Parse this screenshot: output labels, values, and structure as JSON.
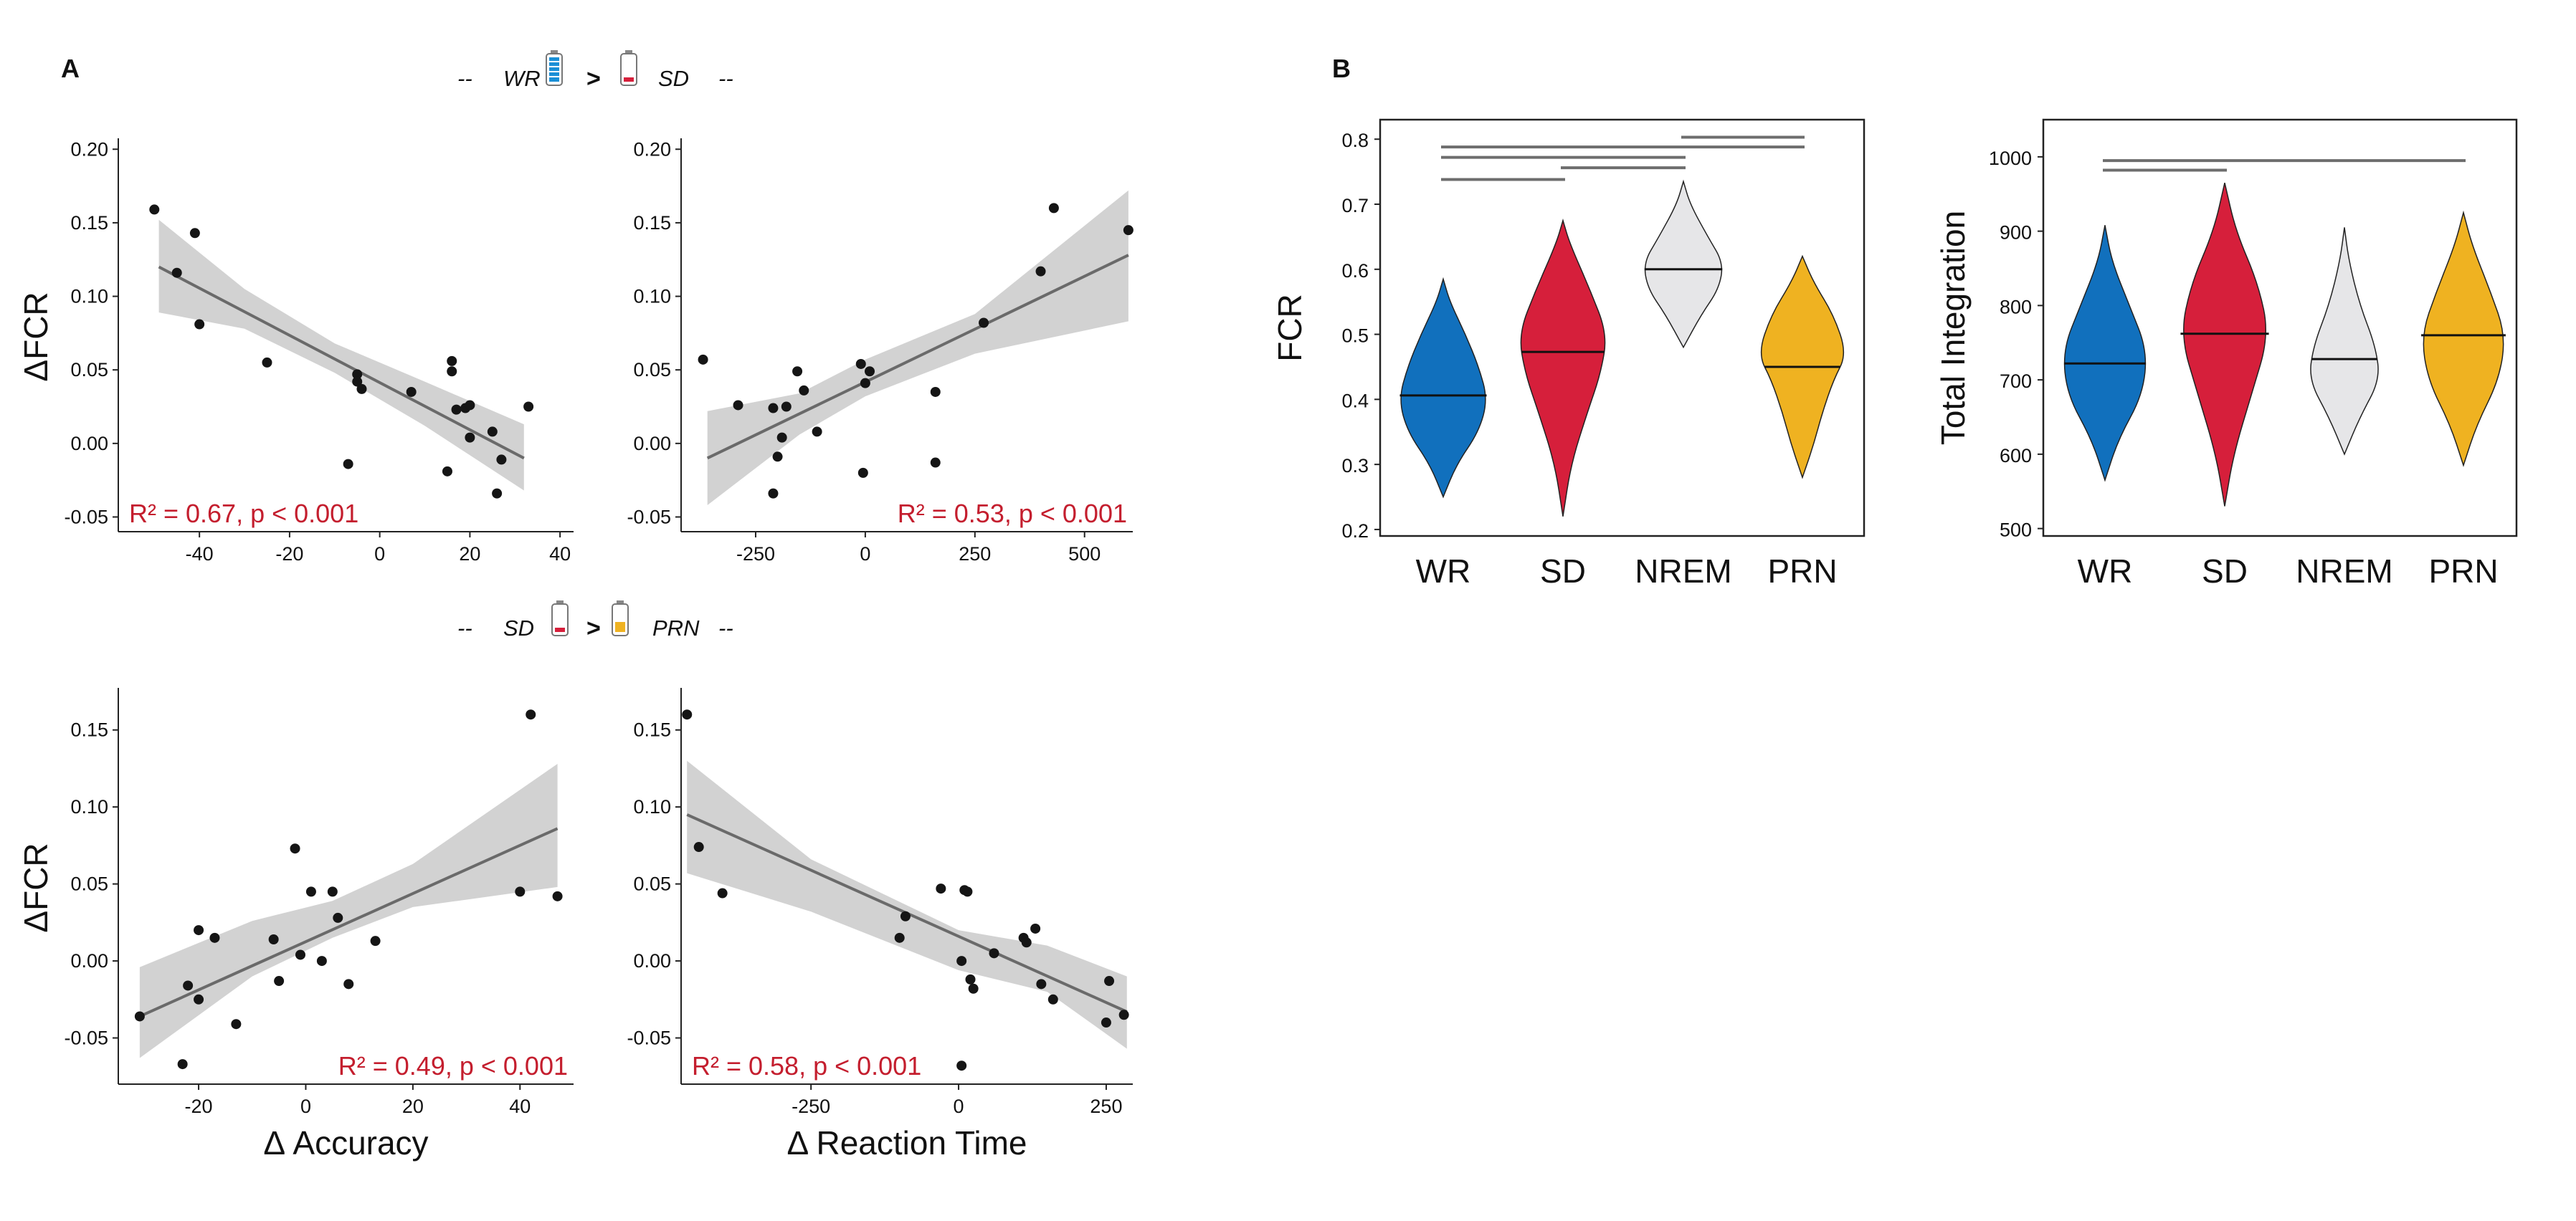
{
  "panels": {
    "a": "A",
    "b": "B"
  },
  "comparisons": [
    {
      "dash": "--",
      "left": "WR",
      "op": ">",
      "right": "SD"
    },
    {
      "dash": "--",
      "left": "SD",
      "op": ">",
      "right": "PRN"
    }
  ],
  "colors": {
    "WR": "#1170bd",
    "SD": "#d61f3b",
    "NREM": "#e6e6e8",
    "PRN": "#efb221",
    "fit": "#6a6a6a",
    "band": "#d0d0d0",
    "point": "#151515",
    "stat": "#c41e2e",
    "sig": "#6d6d6d"
  },
  "icons": {
    "wr_battery": "battery-full-icon",
    "sd_battery": "battery-low-icon",
    "prn_battery": "battery-half-icon"
  },
  "chart_data": [
    {
      "type": "scatter",
      "id": "a1",
      "ylabel": "ΔFCR",
      "xlabel": "",
      "xlim": [
        -58,
        43
      ],
      "ylim": [
        -0.06,
        0.205
      ],
      "xticks": [
        "-40",
        "-20",
        "0",
        "20",
        "40"
      ],
      "xtick_values": [
        -40,
        -20,
        0,
        20,
        40
      ],
      "yticks": [
        "-0.05",
        "0.00",
        "0.05",
        "0.10",
        "0.15",
        "0.20"
      ],
      "ytick_values": [
        -0.05,
        0,
        0.05,
        0.1,
        0.15,
        0.2
      ],
      "fit": {
        "x": [
          -49,
          32
        ],
        "y": [
          0.12,
          -0.01
        ]
      },
      "band": {
        "x": [
          -49,
          -30,
          -10,
          10,
          32
        ],
        "lower": [
          0.089,
          0.078,
          0.048,
          0.012,
          -0.032
        ],
        "upper": [
          0.152,
          0.105,
          0.068,
          0.042,
          0.013
        ]
      },
      "points": {
        "x": [
          -50,
          -45,
          -41,
          -40,
          -25,
          -7,
          -5,
          -5,
          -4,
          7,
          16,
          16,
          17,
          19,
          20,
          20,
          25,
          26,
          27,
          33,
          15
        ],
        "y": [
          0.159,
          0.116,
          0.143,
          0.081,
          0.055,
          -0.014,
          0.047,
          0.042,
          0.037,
          0.035,
          0.056,
          0.049,
          0.023,
          0.024,
          0.026,
          0.004,
          0.008,
          -0.034,
          -0.011,
          0.025,
          -0.019
        ]
      },
      "stat_label": "R² = 0.67, p < 0.001"
    },
    {
      "type": "scatter",
      "id": "a2",
      "ylabel": "",
      "xlabel": "",
      "xlim": [
        -420,
        610
      ],
      "ylim": [
        -0.06,
        0.205
      ],
      "xticks": [
        "-250",
        "0",
        "250",
        "500"
      ],
      "xtick_values": [
        -250,
        0,
        250,
        500
      ],
      "yticks": [
        "-0.05",
        "0.00",
        "0.05",
        "0.10",
        "0.15",
        "0.20"
      ],
      "ytick_values": [
        -0.05,
        0,
        0.05,
        0.1,
        0.15,
        0.2
      ],
      "fit": {
        "x": [
          -360,
          600
        ],
        "y": [
          -0.01,
          0.128
        ]
      },
      "band": {
        "x": [
          -360,
          -150,
          0,
          250,
          600
        ],
        "lower": [
          -0.042,
          0.006,
          0.032,
          0.061,
          0.083
        ],
        "upper": [
          0.022,
          0.034,
          0.057,
          0.088,
          0.172
        ]
      },
      "points": {
        "x": [
          -370,
          -290,
          -210,
          -200,
          -210,
          -190,
          -180,
          -155,
          -140,
          -110,
          -10,
          0,
          10,
          -5,
          160,
          160,
          270,
          400,
          430,
          600
        ],
        "y": [
          0.057,
          0.026,
          0.024,
          -0.009,
          -0.034,
          0.004,
          0.025,
          0.049,
          0.036,
          0.008,
          0.054,
          0.041,
          0.049,
          -0.02,
          0.035,
          -0.013,
          0.082,
          0.117,
          0.16,
          0.145
        ]
      },
      "stat_label": "R² = 0.53, p < 0.001"
    },
    {
      "type": "scatter",
      "id": "a3",
      "ylabel": "ΔFCR",
      "xlabel": "Δ Accuracy",
      "xlim": [
        -35,
        50
      ],
      "ylim": [
        -0.08,
        0.175
      ],
      "xticks": [
        "-20",
        "0",
        "20",
        "40"
      ],
      "xtick_values": [
        -20,
        0,
        20,
        40
      ],
      "yticks": [
        "-0.05",
        "0.00",
        "0.05",
        "0.10",
        "0.15"
      ],
      "ytick_values": [
        -0.05,
        0,
        0.05,
        0.1,
        0.15
      ],
      "fit": {
        "x": [
          -31,
          47
        ],
        "y": [
          -0.036,
          0.086
        ]
      },
      "band": {
        "x": [
          -31,
          -10,
          5,
          20,
          47
        ],
        "lower": [
          -0.063,
          -0.01,
          0.015,
          0.035,
          0.048
        ],
        "upper": [
          -0.004,
          0.026,
          0.039,
          0.063,
          0.128
        ]
      },
      "points": {
        "x": [
          -31,
          -23,
          -22,
          -20,
          -20,
          -17,
          -13,
          -6,
          -5,
          -2,
          -1,
          1,
          3,
          5,
          6,
          8,
          13,
          40,
          42,
          47
        ],
        "y": [
          -0.036,
          -0.067,
          -0.016,
          0.02,
          -0.025,
          0.015,
          -0.041,
          0.014,
          -0.013,
          0.073,
          0.004,
          0.045,
          0.0,
          0.045,
          0.028,
          -0.015,
          0.013,
          0.045,
          0.16,
          0.042
        ]
      },
      "stat_label": "R² = 0.49, p < 0.001"
    },
    {
      "type": "scatter",
      "id": "a4",
      "ylabel": "",
      "xlabel": "Δ Reaction Time",
      "xlim": [
        -470,
        295
      ],
      "ylim": [
        -0.08,
        0.175
      ],
      "xticks": [
        "-250",
        "0",
        "250"
      ],
      "xtick_values": [
        -250,
        0,
        250
      ],
      "yticks": [
        "-0.05",
        "0.00",
        "0.05",
        "0.10",
        "0.15"
      ],
      "ytick_values": [
        -0.05,
        0,
        0.05,
        0.1,
        0.15
      ],
      "fit": {
        "x": [
          -460,
          285
        ],
        "y": [
          0.095,
          -0.033
        ]
      },
      "band": {
        "x": [
          -460,
          -250,
          0,
          150,
          285
        ],
        "lower": [
          0.057,
          0.032,
          -0.006,
          -0.02,
          -0.057
        ],
        "upper": [
          0.13,
          0.066,
          0.02,
          0.01,
          -0.01
        ]
      },
      "points": {
        "x": [
          -460,
          -440,
          -400,
          -100,
          -90,
          -30,
          5,
          10,
          15,
          20,
          25,
          60,
          110,
          115,
          130,
          140,
          160,
          250,
          255,
          280,
          5
        ],
        "y": [
          0.16,
          0.074,
          0.044,
          0.015,
          0.029,
          0.047,
          0.0,
          0.046,
          0.045,
          -0.012,
          -0.018,
          0.005,
          0.015,
          0.012,
          0.021,
          -0.015,
          -0.025,
          -0.04,
          -0.013,
          -0.035,
          -0.068
        ]
      },
      "stat_label": "R² = 0.58, p < 0.001"
    },
    {
      "type": "violin",
      "id": "b1",
      "ylabel": "FCR",
      "xlabel": "",
      "categories": [
        "WR",
        "SD",
        "NREM",
        "PRN"
      ],
      "ylim": [
        0.19,
        0.83
      ],
      "yticks": [
        "0.2",
        "0.3",
        "0.4",
        "0.5",
        "0.6",
        "0.7",
        "0.8"
      ],
      "ytick_values": [
        0.2,
        0.3,
        0.4,
        0.5,
        0.6,
        0.7,
        0.8
      ],
      "medians": [
        0.406,
        0.473,
        0.6,
        0.45
      ],
      "violins": [
        {
          "y": [
            0.25,
            0.3,
            0.35,
            0.4,
            0.45,
            0.5,
            0.55,
            0.585
          ],
          "w": [
            0.0,
            0.3,
            0.8,
            1.0,
            0.8,
            0.5,
            0.15,
            0.0
          ]
        },
        {
          "y": [
            0.22,
            0.3,
            0.38,
            0.44,
            0.5,
            0.57,
            0.64,
            0.675
          ],
          "w": [
            0.0,
            0.18,
            0.55,
            0.85,
            1.0,
            0.6,
            0.15,
            0.0
          ]
        },
        {
          "y": [
            0.48,
            0.53,
            0.57,
            0.61,
            0.65,
            0.7,
            0.735
          ],
          "w": [
            0.0,
            0.4,
            0.8,
            0.9,
            0.55,
            0.15,
            0.0
          ]
        },
        {
          "y": [
            0.28,
            0.33,
            0.38,
            0.43,
            0.47,
            0.53,
            0.58,
            0.62
          ],
          "w": [
            0.0,
            0.25,
            0.45,
            0.7,
            1.0,
            0.7,
            0.25,
            0.0
          ]
        }
      ],
      "significance": [
        {
          "from": 0,
          "to": 1,
          "y": 0.738
        },
        {
          "from": 0,
          "to": 2,
          "y": 0.772
        },
        {
          "from": 0,
          "to": 3,
          "y": 0.788
        },
        {
          "from": 1,
          "to": 2,
          "y": 0.756
        },
        {
          "from": 2,
          "to": 3,
          "y": 0.803
        }
      ]
    },
    {
      "type": "violin",
      "id": "b2",
      "ylabel": "Total Integration",
      "xlabel": "",
      "categories": [
        "WR",
        "SD",
        "NREM",
        "PRN"
      ],
      "ylim": [
        490,
        1050
      ],
      "yticks": [
        "500",
        "600",
        "700",
        "800",
        "900",
        "1000"
      ],
      "ytick_values": [
        500,
        600,
        700,
        800,
        900,
        1000
      ],
      "medians": [
        722,
        762,
        728,
        760
      ],
      "violins": [
        {
          "y": [
            565,
            620,
            680,
            740,
            800,
            860,
            908
          ],
          "w": [
            0.0,
            0.3,
            0.85,
            0.95,
            0.55,
            0.15,
            0.0
          ]
        },
        {
          "y": [
            530,
            600,
            680,
            760,
            830,
            900,
            965
          ],
          "w": [
            0.0,
            0.2,
            0.6,
            1.0,
            0.75,
            0.25,
            0.0
          ]
        },
        {
          "y": [
            600,
            650,
            700,
            745,
            800,
            860,
            905
          ],
          "w": [
            0.0,
            0.35,
            0.8,
            0.7,
            0.35,
            0.1,
            0.0
          ]
        },
        {
          "y": [
            585,
            640,
            700,
            760,
            820,
            880,
            925
          ],
          "w": [
            0.0,
            0.3,
            0.8,
            0.95,
            0.6,
            0.2,
            0.0
          ]
        }
      ],
      "significance": [
        {
          "from": 0,
          "to": 1,
          "y": 982
        },
        {
          "from": 0,
          "to": 3,
          "y": 995
        }
      ]
    }
  ]
}
